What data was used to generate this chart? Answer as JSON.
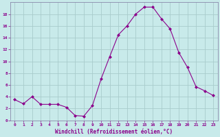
{
  "x": [
    0,
    1,
    2,
    3,
    4,
    5,
    6,
    7,
    8,
    9,
    10,
    11,
    12,
    13,
    14,
    15,
    16,
    17,
    18,
    19,
    20,
    21,
    22,
    23
  ],
  "y": [
    3.5,
    2.8,
    4.0,
    2.7,
    2.7,
    2.7,
    2.2,
    0.8,
    0.7,
    2.5,
    7.0,
    10.8,
    14.5,
    16.0,
    18.0,
    19.2,
    19.2,
    17.2,
    15.5,
    11.5,
    9.0,
    5.7,
    5.0,
    4.2
  ],
  "line_color": "#8B008B",
  "marker": "D",
  "marker_size": 2,
  "bg_color": "#c8eaea",
  "grid_color": "#a8cccc",
  "xlabel": "Windchill (Refroidissement éolien,°C)",
  "xlabel_color": "#8B008B",
  "tick_color": "#8B008B",
  "spine_color": "#8888aa",
  "ylim": [
    0,
    20
  ],
  "xlim": [
    -0.5,
    23.5
  ],
  "yticks": [
    0,
    2,
    4,
    6,
    8,
    10,
    12,
    14,
    16,
    18
  ],
  "xticks": [
    0,
    1,
    2,
    3,
    4,
    5,
    6,
    7,
    8,
    9,
    10,
    11,
    12,
    13,
    14,
    15,
    16,
    17,
    18,
    19,
    20,
    21,
    22,
    23
  ],
  "tick_fontsize": 4.5,
  "xlabel_fontsize": 5.5,
  "ylabel_fontsize": 5.5
}
